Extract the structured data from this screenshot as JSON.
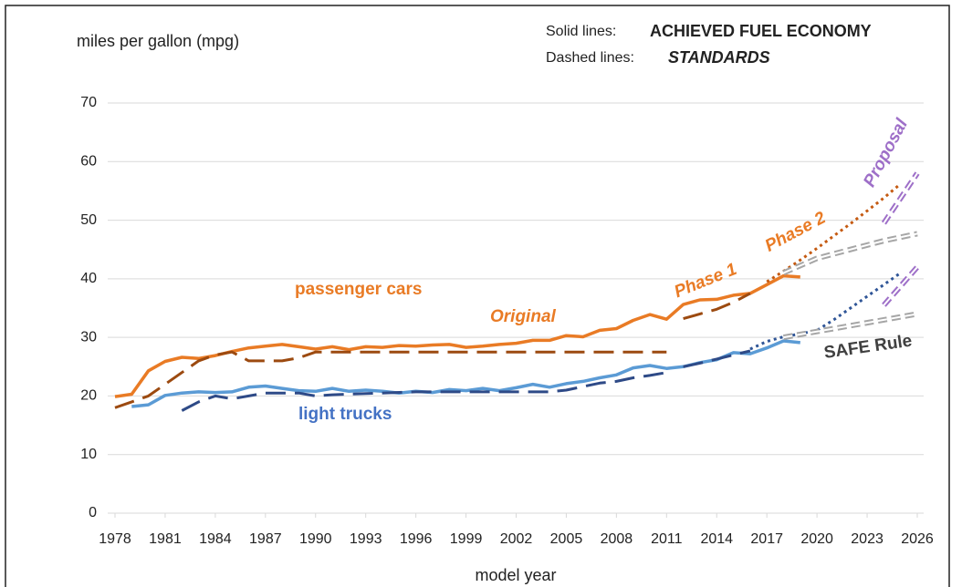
{
  "chart_data": {
    "type": "line",
    "y_label": "miles per gallon (mpg)",
    "x_label": "model year",
    "key": [
      {
        "label": "Solid lines:",
        "text": "ACHIEVED FUEL ECONOMY"
      },
      {
        "label": "Dashed lines:",
        "text": "STANDARDS"
      }
    ],
    "xlim": [
      1978,
      2026
    ],
    "xticks": [
      1978,
      1981,
      1984,
      1987,
      1990,
      1993,
      1996,
      1999,
      2002,
      2005,
      2008,
      2011,
      2014,
      2017,
      2020,
      2023,
      2026
    ],
    "ylim": [
      0,
      70
    ],
    "yticks": [
      0,
      10,
      20,
      30,
      40,
      50,
      60,
      70
    ],
    "grid": true,
    "series": [
      {
        "color": "#e97b25",
        "style": "solid",
        "x": [
          1978,
          1979,
          1980,
          1981,
          1982,
          1983,
          1984,
          1985,
          1986,
          1987,
          1988,
          1989,
          1990,
          1991,
          1992,
          1993,
          1994,
          1995,
          1996,
          1997,
          1998,
          1999,
          2000,
          2001,
          2002,
          2003,
          2004,
          2005,
          2006,
          2007,
          2008,
          2009,
          2010,
          2011,
          2012,
          2013,
          2014,
          2015,
          2016,
          2017,
          2018,
          2019
        ],
        "values": [
          19.9,
          20.3,
          24.3,
          25.9,
          26.6,
          26.4,
          26.9,
          27.6,
          28.2,
          28.5,
          28.8,
          28.4,
          28.0,
          28.4,
          27.9,
          28.4,
          28.3,
          28.6,
          28.5,
          28.7,
          28.8,
          28.3,
          28.5,
          28.8,
          29.0,
          29.5,
          29.5,
          30.3,
          30.1,
          31.2,
          31.5,
          32.9,
          33.9,
          33.1,
          35.6,
          36.4,
          36.5,
          37.2,
          37.5,
          39.0,
          40.5,
          40.3
        ]
      },
      {
        "color": "#5b9bd5",
        "style": "solid",
        "x": [
          1979,
          1980,
          1981,
          1982,
          1983,
          1984,
          1985,
          1986,
          1987,
          1988,
          1989,
          1990,
          1991,
          1992,
          1993,
          1994,
          1995,
          1996,
          1997,
          1998,
          1999,
          2000,
          2001,
          2002,
          2003,
          2004,
          2005,
          2006,
          2007,
          2008,
          2009,
          2010,
          2011,
          2012,
          2013,
          2014,
          2015,
          2016,
          2017,
          2018,
          2019
        ],
        "values": [
          18.2,
          18.5,
          20.1,
          20.5,
          20.7,
          20.6,
          20.7,
          21.5,
          21.7,
          21.3,
          20.9,
          20.8,
          21.3,
          20.8,
          21.0,
          20.8,
          20.5,
          20.8,
          20.6,
          21.1,
          20.9,
          21.3,
          20.9,
          21.4,
          22.0,
          21.5,
          22.1,
          22.5,
          23.1,
          23.6,
          24.8,
          25.2,
          24.7,
          25.0,
          25.7,
          26.2,
          27.4,
          27.2,
          28.2,
          29.4,
          29.1
        ]
      },
      {
        "color": "#9c4a10",
        "style": "dashed",
        "x": [
          1978,
          1979,
          1980,
          1981,
          1982,
          1983,
          1984,
          1985,
          1986,
          1987,
          1988,
          1989,
          1990,
          2011
        ],
        "values": [
          18.0,
          19.0,
          20.0,
          22.0,
          24.0,
          26.0,
          27.0,
          27.5,
          26.0,
          26.0,
          26.0,
          26.5,
          27.5,
          27.5
        ]
      },
      {
        "color": "#2e4a87",
        "style": "dashed",
        "x": [
          1982,
          1983,
          1984,
          1985,
          1986,
          1987,
          1988,
          1989,
          1990,
          1991,
          1996,
          2004,
          2005,
          2006,
          2007,
          2008,
          2009,
          2010,
          2011
        ],
        "values": [
          17.5,
          19.0,
          20.0,
          19.5,
          20.0,
          20.5,
          20.5,
          20.5,
          20.0,
          20.2,
          20.7,
          20.7,
          21.0,
          21.6,
          22.2,
          22.5,
          23.1,
          23.5,
          24.0
        ]
      },
      {
        "color": "#9c4a10",
        "style": "dashed",
        "x": [
          2012,
          2013,
          2014,
          2015,
          2016
        ],
        "values": [
          33.2,
          34.0,
          34.8,
          36.0,
          37.5
        ]
      },
      {
        "color": "#2e4a87",
        "style": "dashed",
        "x": [
          2012,
          2013,
          2014,
          2015,
          2016
        ],
        "values": [
          25.0,
          25.6,
          26.3,
          27.0,
          27.7
        ]
      },
      {
        "color": "#c55a11",
        "style": "dotted",
        "x": [
          2017,
          2018,
          2019,
          2020,
          2021,
          2022,
          2023,
          2024,
          2025
        ],
        "values": [
          39.5,
          41.3,
          43.2,
          45.2,
          47.3,
          49.4,
          51.6,
          53.8,
          56.2
        ]
      },
      {
        "color": "#2f5597",
        "style": "dotted",
        "x": [
          2016,
          2017,
          2018,
          2019,
          2020,
          2021,
          2022,
          2023,
          2024,
          2025
        ],
        "values": [
          28.0,
          29.3,
          30.1,
          30.6,
          31.2,
          33.0,
          35.0,
          37.0,
          39.0,
          41.0
        ]
      },
      {
        "color": "#a6a6a6",
        "style": "double",
        "x": [
          2018,
          2020,
          2022,
          2024,
          2026
        ],
        "values": [
          41.0,
          43.5,
          45.0,
          46.5,
          47.7
        ]
      },
      {
        "color": "#a6a6a6",
        "style": "double",
        "x": [
          2018,
          2020,
          2022,
          2024,
          2026
        ],
        "values": [
          30.0,
          31.0,
          32.0,
          33.0,
          34.0
        ]
      },
      {
        "color": "#9e6fc8",
        "style": "double",
        "x": [
          2024,
          2026
        ],
        "values": [
          49.5,
          58.0
        ]
      },
      {
        "color": "#9e6fc8",
        "style": "double",
        "x": [
          2024,
          2026
        ],
        "values": [
          35.5,
          42.0
        ]
      }
    ],
    "annotations": [
      {
        "text": "passenger cars",
        "color": "#e97b25"
      },
      {
        "text": "light trucks",
        "color": "#4472c4"
      },
      {
        "text": "Original",
        "color": "#e97b25"
      },
      {
        "text": "Phase 1",
        "color": "#e97b25"
      },
      {
        "text": "Phase 2",
        "color": "#e97b25"
      },
      {
        "text": "SAFE Rule",
        "color": "#404040"
      },
      {
        "text": "Proposal",
        "color": "#9e6fc8"
      }
    ]
  }
}
